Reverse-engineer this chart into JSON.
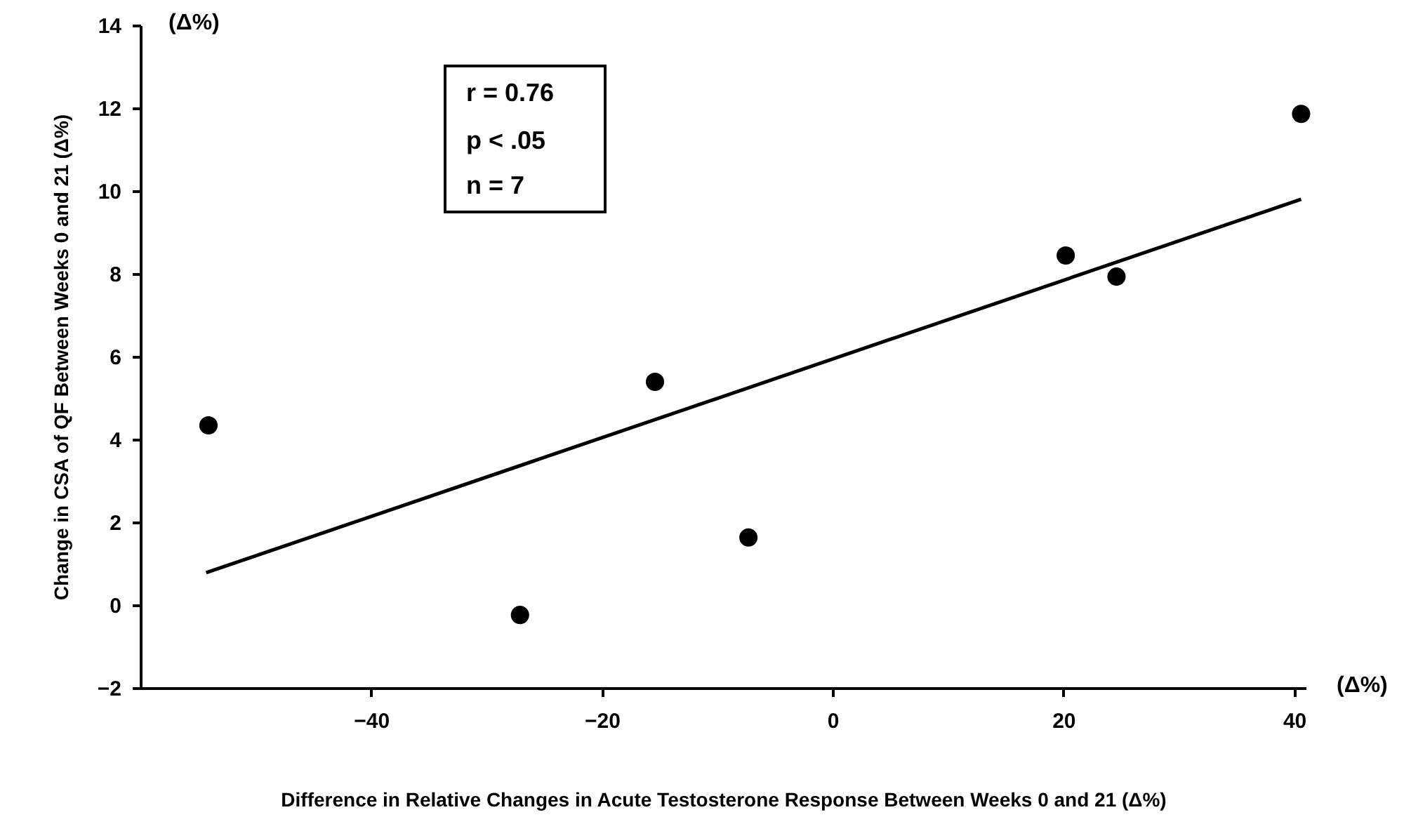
{
  "chart_data": {
    "type": "scatter",
    "xlabel": "Difference in Relative Changes in Acute Testosterone Response Between Weeks 0 and 21 (Δ%)",
    "ylabel": "Change in CSA of QF Between Weeks 0 and 21 (Δ%)",
    "x": [
      -54.1,
      -27.1,
      -15.4,
      -7.3,
      20.2,
      24.6,
      40.6
    ],
    "series": [
      {
        "color": "#000000",
        "marker": "circle",
        "values": [
          4.34,
          -0.24,
          5.39,
          1.63,
          8.44,
          7.93,
          11.86
        ]
      },
      {
        "type": "line",
        "color": "#000000",
        "marker": "none",
        "x": [
          -54.3,
          40.6
        ],
        "values": [
          0.78,
          9.8
        ]
      }
    ],
    "xlim": [
      -60,
      41
    ],
    "xticks": [
      -40,
      -20,
      0,
      20,
      40
    ],
    "ylim": [
      -2,
      14
    ],
    "yticks": [
      -2,
      0,
      2,
      4,
      6,
      8,
      10,
      12,
      14
    ],
    "line_style": "solid",
    "grid": false,
    "annotations": [
      "r = 0.76",
      "p < .05",
      "n = 7",
      "(Δ%)",
      "(Δ%)"
    ]
  }
}
